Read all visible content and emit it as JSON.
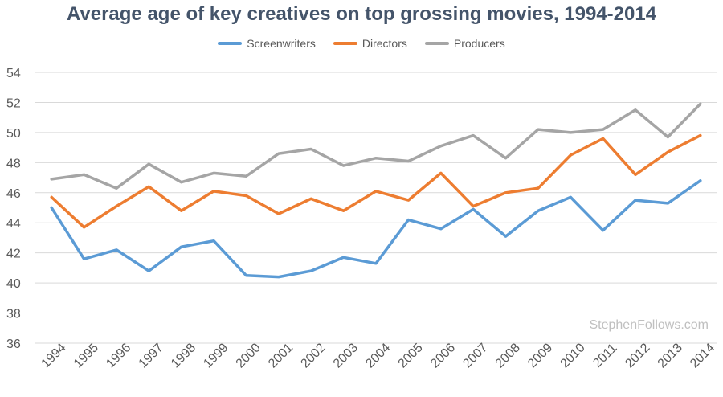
{
  "chart_data": {
    "type": "line",
    "title": "Average age of key creatives on top grossing movies, 1994-2014",
    "xlabel": "",
    "ylabel": "",
    "ylim": [
      36,
      54
    ],
    "yticks": [
      36,
      38,
      40,
      42,
      44,
      46,
      48,
      50,
      52,
      54
    ],
    "grid": true,
    "legend_position": "top-center",
    "categories": [
      "1994",
      "1995",
      "1996",
      "1997",
      "1998",
      "1999",
      "2000",
      "2001",
      "2002",
      "2003",
      "2004",
      "2005",
      "2006",
      "2007",
      "2008",
      "2009",
      "2010",
      "2011",
      "2012",
      "2013",
      "2014"
    ],
    "series": [
      {
        "name": "Screenwriters",
        "color": "#5b9bd5",
        "values": [
          45.0,
          41.6,
          42.2,
          40.8,
          42.4,
          42.8,
          40.5,
          40.4,
          40.8,
          41.7,
          41.3,
          44.2,
          43.6,
          44.9,
          43.1,
          44.8,
          45.7,
          43.5,
          45.5,
          45.3,
          46.8
        ]
      },
      {
        "name": "Directors",
        "color": "#ed7d31",
        "values": [
          45.7,
          43.7,
          45.1,
          46.4,
          44.8,
          46.1,
          45.8,
          44.6,
          45.6,
          44.8,
          46.1,
          45.5,
          47.3,
          45.1,
          46.0,
          46.3,
          48.5,
          49.6,
          47.2,
          48.7,
          49.8
        ]
      },
      {
        "name": "Producers",
        "color": "#a5a5a5",
        "values": [
          46.9,
          47.2,
          46.3,
          47.9,
          46.7,
          47.3,
          47.1,
          48.6,
          48.9,
          47.8,
          48.3,
          48.1,
          49.1,
          49.8,
          48.3,
          50.2,
          50.0,
          50.2,
          51.5,
          49.7,
          51.9
        ]
      }
    ]
  },
  "watermark": "StephenFollows.com"
}
